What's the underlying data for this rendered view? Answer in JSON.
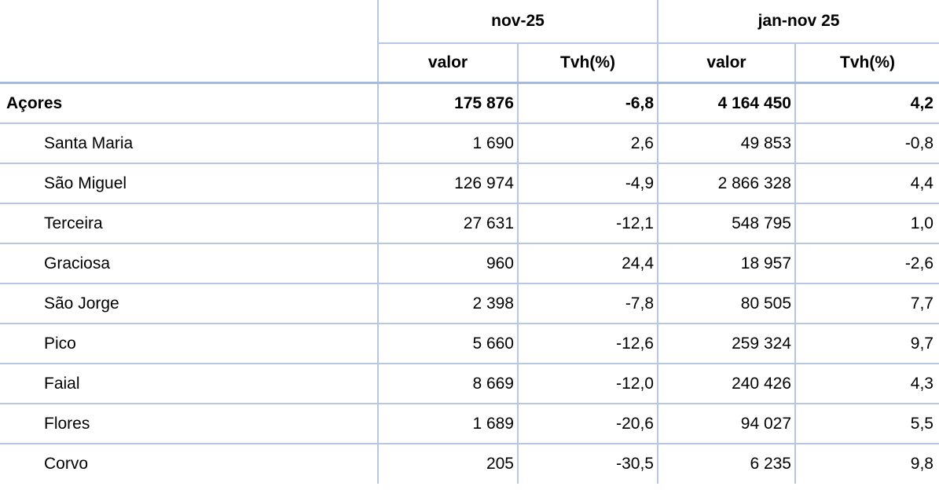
{
  "chart_data": {
    "type": "table",
    "title": "",
    "column_groups": [
      {
        "label": "nov-25",
        "span": 2
      },
      {
        "label": "jan-nov 25",
        "span": 2
      }
    ],
    "sub_headers": {
      "nov_valor": "valor",
      "nov_tvh": "Tvh(%)",
      "jan_valor": "valor",
      "jan_tvh": "Tvh(%)"
    },
    "rows": [
      [
        "Açores",
        "175 876",
        "-6,8",
        "4 164 450",
        "4,2"
      ],
      [
        "Santa Maria",
        "1 690",
        "2,6",
        "49 853",
        "-0,8"
      ],
      [
        "São Miguel",
        "126 974",
        "-4,9",
        "2 866 328",
        "4,4"
      ],
      [
        "Terceira",
        "27 631",
        "-12,1",
        "548 795",
        "1,0"
      ],
      [
        "Graciosa",
        "960",
        "24,4",
        "18 957",
        "-2,6"
      ],
      [
        "São Jorge",
        "2 398",
        "-7,8",
        "80 505",
        "7,7"
      ],
      [
        "Pico",
        "5 660",
        "-12,6",
        "259 324",
        "9,7"
      ],
      [
        "Faial",
        "8 669",
        "-12,0",
        "240 426",
        "4,3"
      ],
      [
        "Flores",
        "1 689",
        "-20,6",
        "94 027",
        "5,5"
      ],
      [
        "Corvo",
        "205",
        "-30,5",
        "6 235",
        "9,8"
      ]
    ],
    "notes": {
      "decimal_separator": ",",
      "thousands_separator": " ",
      "total_row": "Açores",
      "grid_color": "#b6c7e4",
      "strong_grid_color": "#a5bbdc",
      "text_color": "#000000"
    }
  }
}
